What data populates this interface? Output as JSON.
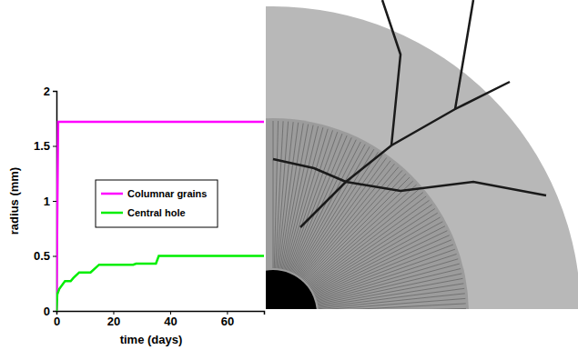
{
  "chart_data": {
    "type": "line",
    "x_label": "time (days)",
    "y_label": "radius (mm)",
    "xlim": [
      0,
      73
    ],
    "xticks": [
      0,
      20,
      40,
      60
    ],
    "ylim": [
      0,
      2
    ],
    "yticks": [
      0,
      0.5,
      1,
      1.5,
      2
    ],
    "legend": "center",
    "series": [
      {
        "name": "Columnar grains",
        "color": "#ff00ff",
        "x": [
          0,
          0.6,
          73
        ],
        "values": [
          0,
          1.72,
          1.72
        ]
      },
      {
        "name": "Central hole",
        "color": "#00ee00",
        "x": [
          0,
          0.3,
          1,
          3,
          5,
          6,
          8,
          12,
          15,
          27,
          28,
          35,
          36,
          73
        ],
        "values": [
          0,
          0.15,
          0.2,
          0.27,
          0.27,
          0.3,
          0.35,
          0.35,
          0.42,
          0.42,
          0.43,
          0.43,
          0.5,
          0.5
        ]
      }
    ]
  }
}
